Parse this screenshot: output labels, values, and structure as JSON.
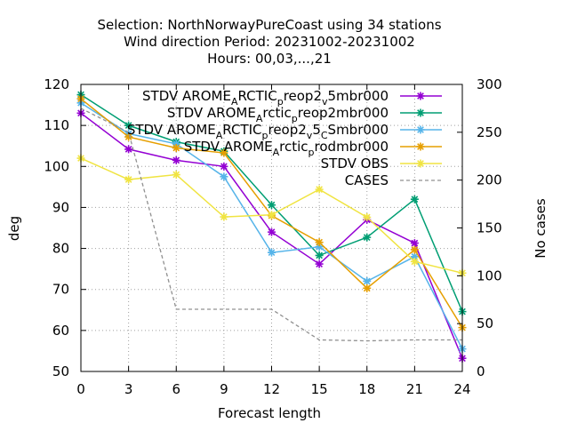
{
  "chart_data": {
    "type": "line",
    "title_lines": [
      "Selection: NorthNorwayPureCoast using    34 stations",
      "Wind direction   Period: 20231002-20231002",
      "Hours:  00,03,...,21"
    ],
    "xlabel": "Forecast length",
    "ylabel": "deg",
    "y2label": "No cases",
    "x": [
      0,
      3,
      6,
      9,
      12,
      15,
      18,
      21,
      24
    ],
    "xlim": [
      0,
      24
    ],
    "ylim": [
      50,
      120
    ],
    "y2lim": [
      0,
      300
    ],
    "x_ticks": [
      "0",
      "3",
      "6",
      "9",
      "12",
      "15",
      "18",
      "21",
      "24"
    ],
    "y_ticks": [
      "50",
      "60",
      "70",
      "80",
      "90",
      "100",
      "110",
      "120"
    ],
    "y2_ticks": [
      "0",
      "50",
      "100",
      "150",
      "200",
      "250",
      "300"
    ],
    "grid": true,
    "legend_position": "top-right",
    "series": [
      {
        "name": "STDV AROME_ARCTIC_preop2_v5mbr000",
        "legend_parts": [
          [
            "STDV AROME",
            ""
          ],
          [
            "A",
            "sub"
          ],
          [
            "RCTIC",
            ""
          ],
          [
            "p",
            "sub"
          ],
          [
            "reop2",
            ""
          ],
          [
            "v",
            "sub"
          ],
          [
            "5mbr000",
            ""
          ]
        ],
        "color": "#9400d3",
        "marker": "star",
        "dashed": false,
        "axis": "y",
        "values": [
          113,
          104.2,
          101.5,
          100,
          84,
          76.2,
          87,
          81.3,
          53.2
        ]
      },
      {
        "name": "STDV AROME_Arctic_preop2mbr000",
        "legend_parts": [
          [
            "STDV AROME",
            ""
          ],
          [
            "A",
            "sub"
          ],
          [
            "rctic",
            ""
          ],
          [
            "p",
            "sub"
          ],
          [
            "reop2mbr000",
            ""
          ]
        ],
        "color": "#009e73",
        "marker": "star",
        "dashed": false,
        "axis": "y",
        "values": [
          117.5,
          110,
          106,
          103.7,
          90.6,
          78.3,
          82.7,
          92,
          64.6
        ]
      },
      {
        "name": "STDV AROME_ARCTIC_preop2_v5_CSmbr000",
        "legend_parts": [
          [
            "STDV AROME",
            ""
          ],
          [
            "A",
            "sub"
          ],
          [
            "RCTIC",
            ""
          ],
          [
            "p",
            "sub"
          ],
          [
            "reop2",
            ""
          ],
          [
            "v",
            "sub"
          ],
          [
            "5",
            ""
          ],
          [
            "C",
            "sub"
          ],
          [
            "Smbr000",
            ""
          ]
        ],
        "color": "#56b4e9",
        "marker": "star",
        "dashed": false,
        "axis": "y",
        "values": [
          115.5,
          108,
          105.5,
          97.5,
          79,
          80.4,
          72,
          78,
          55.5
        ]
      },
      {
        "name": "STDV AROME_Arctic_prodmbr000",
        "legend_parts": [
          [
            "STDV AROME",
            ""
          ],
          [
            "A",
            "sub"
          ],
          [
            "rctic",
            ""
          ],
          [
            "p",
            "sub"
          ],
          [
            "rodmbr000",
            ""
          ]
        ],
        "color": "#e69f00",
        "marker": "star",
        "dashed": false,
        "axis": "y",
        "values": [
          116.5,
          107.2,
          104.5,
          103.3,
          88,
          81.5,
          70.3,
          79.7,
          60.7
        ]
      },
      {
        "name": "STDV OBS",
        "legend_parts": [
          [
            "STDV OBS",
            ""
          ]
        ],
        "color": "#f0e442",
        "marker": "star",
        "dashed": false,
        "axis": "y",
        "values": [
          102,
          96.8,
          98,
          87.7,
          88.2,
          94.4,
          87.6,
          76.8,
          74
        ]
      },
      {
        "name": "CASES",
        "legend_parts": [
          [
            "CASES",
            ""
          ]
        ],
        "color": "#909090",
        "marker": "none",
        "dashed": true,
        "axis": "y2",
        "values": [
          275,
          250,
          65,
          65,
          65,
          33,
          32,
          33,
          33
        ]
      }
    ]
  }
}
